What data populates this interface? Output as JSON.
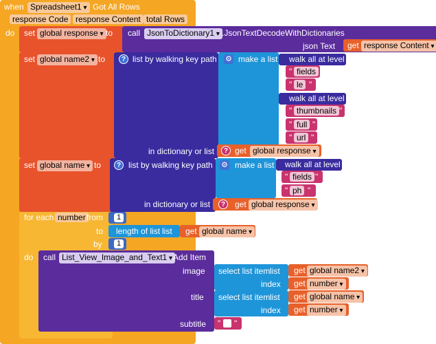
{
  "event": {
    "when_label": "when",
    "component": "Spreadsheet1",
    "event_name": "Got All Rows",
    "params": [
      "response Code",
      "response Content",
      "total Rows"
    ],
    "do_label": "do"
  },
  "set1": {
    "set_label": "set",
    "variable": "global response",
    "to_label": "to",
    "call_label": "call",
    "component": "JsonToDictionary1",
    "method": ".JsonTextDecodeWithDictionaries",
    "arg_label": "json Text",
    "get_label": "get",
    "get_var": "response Content"
  },
  "set2": {
    "set_label": "set",
    "variable": "global name2",
    "to_label": "to",
    "walk_label": "list by walking key path",
    "make_list_label": "make a list",
    "walk_all_label": "walk all at level",
    "strings1": [
      "fields",
      "le"
    ],
    "strings2": [
      "thumbnails",
      "full",
      "url"
    ],
    "in_dict_label": "in dictionary or list",
    "get_label": "get",
    "get_var": "global response"
  },
  "set3": {
    "set_label": "set",
    "variable": "global name",
    "to_label": "to",
    "walk_label": "list by walking key path",
    "make_list_label": "make a list",
    "walk_all_label": "walk all at level",
    "strings": [
      "fields",
      "ph"
    ],
    "in_dict_label": "in dictionary or list",
    "get_label": "get",
    "get_var": "global response"
  },
  "foreach": {
    "for_label": "for each",
    "var": "number",
    "from_label": "from",
    "from_val": "1",
    "to_label": "to",
    "length_label": "length of list",
    "list_label": "list",
    "get_label": "get",
    "get_var": "global name",
    "by_label": "by",
    "by_val": "1",
    "do_label": "do"
  },
  "call": {
    "call_label": "call",
    "component": "List_View_Image_and_Text1",
    "method": "Add Item",
    "image_label": "image",
    "title_label": "title",
    "subtitle_label": "subtitle",
    "select_label": "select list item",
    "list_label": "list",
    "index_label": "index",
    "get_label": "get",
    "image_list_var": "global name2",
    "image_index_var": "number",
    "title_list_var": "global name",
    "title_index_var": "number"
  }
}
